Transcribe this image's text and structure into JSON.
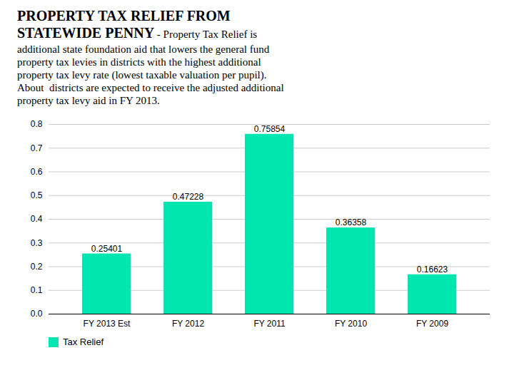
{
  "chart_data": {
    "type": "bar",
    "title": "PROPERTY TAX RELIEF FROM\nSTATEWIDE PENNY",
    "subtitle": " - Property Tax Relief is\nadditional state foundation aid that lowers the general fund\nproperty tax levies in districts with the highest additional\nproperty tax levy rate (lowest taxable valuation per pupil).\nAbout  districts are expected to receive the adjusted additional\nproperty tax levy aid in FY 2013.",
    "categories": [
      "FY 2013 Est",
      "FY 2012",
      "FY 2011",
      "FY 2010",
      "FY 2009"
    ],
    "series": [
      {
        "name": "Tax Relief",
        "color": "#00E6B0",
        "values": [
          0.25401,
          0.47228,
          0.75854,
          0.36358,
          0.16623
        ]
      }
    ],
    "ylim": [
      0,
      0.8
    ],
    "yticks": [
      {
        "value": 0,
        "label": "0.0"
      },
      0.1,
      0.2,
      0.3,
      0.4,
      0.5,
      0.6,
      0.7,
      0.8
    ],
    "grid": true,
    "legend": "bottom",
    "data_labels": true
  }
}
